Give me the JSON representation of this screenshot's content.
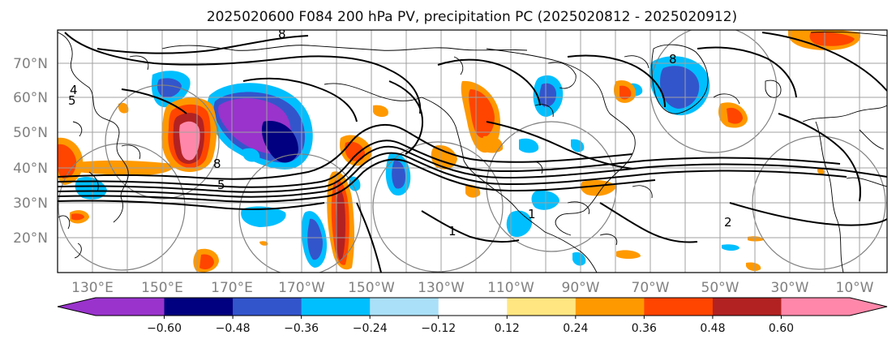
{
  "title": "2025020600 F084 200 hPa PV, precipitation PC (2025020812 - 2025020912)",
  "latitude_labels": [
    "70°N",
    "60°N",
    "50°N",
    "40°N",
    "30°N",
    "20°N"
  ],
  "longitude_labels": [
    "130°E",
    "150°E",
    "170°E",
    "170°W",
    "150°W",
    "130°W",
    "110°W",
    "90°W",
    "70°W",
    "50°W",
    "30°W",
    "10°W"
  ],
  "colorbar": {
    "colors": [
      "#9933cc",
      "#000080",
      "#3355cc",
      "#00bfff",
      "#aae0f8",
      "#ffffff",
      "#ffe680",
      "#ff9900",
      "#ff4500",
      "#b22222",
      "#ff88aa"
    ],
    "extend": "both",
    "tick_labels": [
      "−0.60",
      "−0.48",
      "−0.36",
      "−0.24",
      "−0.12",
      "0.12",
      "0.24",
      "0.36",
      "0.48",
      "0.60"
    ]
  },
  "pv_contour_labels": [
    "8",
    "4",
    "5",
    "8",
    "5",
    "1",
    "1",
    "8",
    "2"
  ],
  "colors": {
    "coastline": "#000000",
    "pv_contour": "#000000",
    "gridline": "#a0a0a0",
    "range_ring": "#808080"
  }
}
